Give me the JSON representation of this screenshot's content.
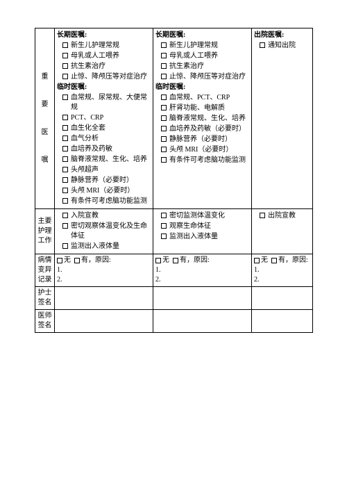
{
  "rows": {
    "orders_label": "重要医嘱",
    "nursing_label": "主要护理工作",
    "variance_label": "病情变异记录",
    "nurse_sig_label": "护士签名",
    "doctor_sig_label": "医师签名"
  },
  "col1": {
    "longterm_title": "长期医嘱:",
    "longterm_items": [
      "新生儿护理常规",
      "母乳或人工喂养",
      "抗生素治疗",
      "止惊、降颅压等对症治疗"
    ],
    "temp_title": "临时医嘱:",
    "temp_items": [
      "血常规、尿常规、大便常规",
      "PCT、CRP",
      "血生化全套",
      "血气分析",
      "血培养及药敏",
      "脑脊液常规、生化、培养",
      "头颅超声",
      "静脉营养（必要时）",
      "头颅 MRI（必要时）",
      "有条件可考虑脑功能监测"
    ],
    "nursing_items": [
      "入院宣教",
      "密切观察体温变化及生命体征",
      "监测出入液体量"
    ],
    "variance_none": "无",
    "variance_yes": "有，原因:",
    "variance_1": "1.",
    "variance_2": "2."
  },
  "col2": {
    "longterm_title": "长期医嘱:",
    "longterm_items": [
      "新生儿护理常规",
      "母乳或人工喂养",
      "抗生素治疗",
      "止惊、降颅压等对症治疗"
    ],
    "temp_title": "临时医嘱:",
    "temp_items": [
      "血常规、PCT、CRP",
      "肝肾功能、电解质",
      "脑脊液常规、生化、培养",
      "血培养及药敏（必要时）",
      "静脉营养（必要时）",
      "头颅 MRI（必要时）",
      "有条件可考虑脑功能监测"
    ],
    "nursing_items": [
      "密切监测体温变化",
      "观察生命体征",
      "监测出入液体量"
    ],
    "variance_none": "无",
    "variance_yes": "有，原因:",
    "variance_1": "1.",
    "variance_2": "2."
  },
  "col3": {
    "longterm_title": "出院医嘱:",
    "longterm_items": [
      "通知出院"
    ],
    "nursing_items": [
      "出院宣教"
    ],
    "variance_none": "无",
    "variance_yes": "有，原因:",
    "variance_1": "1.",
    "variance_2": "2."
  }
}
